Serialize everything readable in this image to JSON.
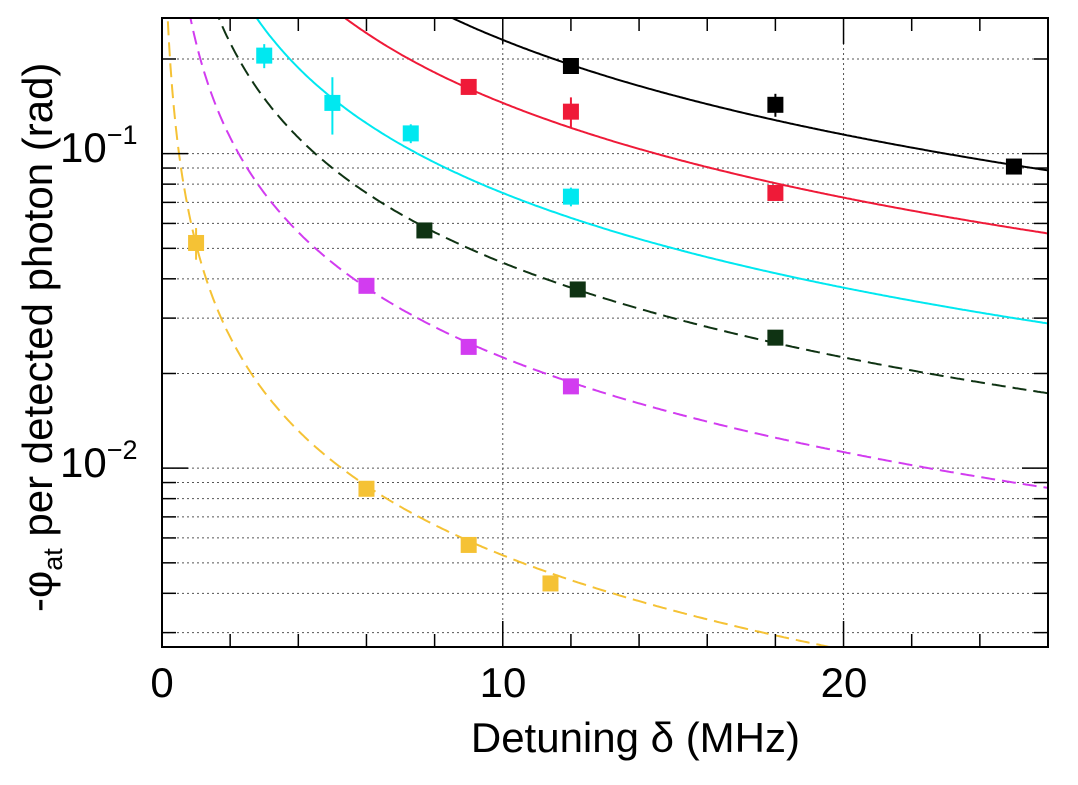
{
  "chart_data": {
    "type": "scatter",
    "title": "",
    "xlabel": "Detuning δ (MHz)",
    "ylabel": {
      "prefix": "-φ",
      "subscript": "at",
      "suffix": " per detected photon (rad)"
    },
    "xlim": [
      0,
      26
    ],
    "ylim": [
      0.0027,
      0.27
    ],
    "yscale": "log",
    "grid": true,
    "xticks": [
      {
        "value": 0,
        "label": "0"
      },
      {
        "value": 10,
        "label": "10"
      },
      {
        "value": 20,
        "label": "20"
      }
    ],
    "yticks": [
      {
        "value": 0.1,
        "base": "10",
        "exp": "−1"
      },
      {
        "value": 0.01,
        "base": "10",
        "exp": "−2"
      }
    ],
    "series": [
      {
        "name": "black",
        "color": "#000000",
        "dashed": false,
        "points": [
          {
            "x": 12.0,
            "y": 0.19,
            "err": 0.008
          },
          {
            "x": 18.0,
            "y": 0.143,
            "err": 0.012
          },
          {
            "x": 25.0,
            "y": 0.091,
            "err": 0.003
          }
        ],
        "curve": {
          "A": 2.3,
          "x0": 0.0
        }
      },
      {
        "name": "red",
        "color": "#ef1a38",
        "dashed": false,
        "points": [
          {
            "x": 9.0,
            "y": 0.163,
            "err": 0.005
          },
          {
            "x": 12.0,
            "y": 0.136,
            "err": 0.015
          },
          {
            "x": 18.0,
            "y": 0.075,
            "err": 0.003
          }
        ],
        "curve": {
          "A": 1.45,
          "x0": 0.0
        }
      },
      {
        "name": "cyan",
        "color": "#00e8f0",
        "dashed": false,
        "points": [
          {
            "x": 3.0,
            "y": 0.205,
            "err": 0.018
          },
          {
            "x": 5.0,
            "y": 0.145,
            "err": 0.03
          },
          {
            "x": 7.3,
            "y": 0.116,
            "err": 0.008
          },
          {
            "x": 12.0,
            "y": 0.073,
            "err": 0.005
          }
        ],
        "curve": {
          "A": 0.75,
          "x0": 0.0
        }
      },
      {
        "name": "dark green",
        "color": "#0f3313",
        "dashed": true,
        "points": [
          {
            "x": 7.7,
            "y": 0.057,
            "err": 0.002
          },
          {
            "x": 12.2,
            "y": 0.037,
            "err": 0.001
          },
          {
            "x": 18.0,
            "y": 0.026,
            "err": 0.001
          }
        ],
        "curve": {
          "A": 0.45,
          "x0": 0.0
        }
      },
      {
        "name": "purple",
        "color": "#d23cf0",
        "dashed": true,
        "points": [
          {
            "x": 6.0,
            "y": 0.038,
            "err": 0.002
          },
          {
            "x": 9.0,
            "y": 0.0243,
            "err": 0.0005
          },
          {
            "x": 12.0,
            "y": 0.0182,
            "err": 0.0004
          }
        ],
        "curve": {
          "A": 0.225,
          "x0": 0.0
        }
      },
      {
        "name": "yellow",
        "color": "#f5c235",
        "dashed": true,
        "points": [
          {
            "x": 1.0,
            "y": 0.052,
            "err": 0.006
          },
          {
            "x": 6.0,
            "y": 0.0086,
            "err": 0.0003
          },
          {
            "x": 9.0,
            "y": 0.0057,
            "err": 0.0002
          },
          {
            "x": 11.4,
            "y": 0.0043,
            "err": 0.0001
          }
        ],
        "curve": {
          "A": 0.053,
          "x0": 0.03
        }
      }
    ]
  }
}
